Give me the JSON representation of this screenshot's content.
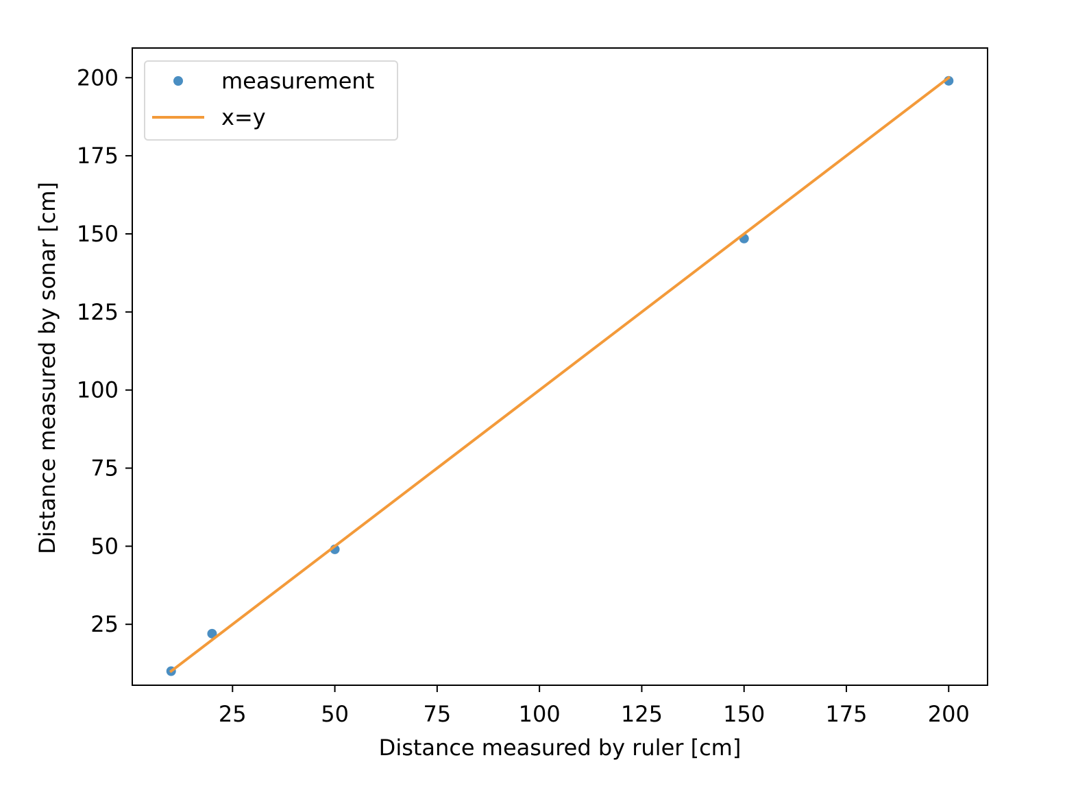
{
  "chart_data": {
    "type": "scatter",
    "xlabel": "Distance measured by ruler [cm]",
    "ylabel": "Distance measured by sonar [cm]",
    "xlim": [
      0.5,
      209.5
    ],
    "ylim": [
      5.5,
      209.5
    ],
    "xticks": [
      25,
      50,
      75,
      100,
      125,
      150,
      175,
      200
    ],
    "yticks": [
      25,
      50,
      75,
      100,
      125,
      150,
      175,
      200
    ],
    "grid": false,
    "legend_position": "upper-left",
    "series": [
      {
        "name": "measurement",
        "kind": "scatter",
        "color": "#4a8ec2",
        "x": [
          10,
          20,
          50,
          150,
          200
        ],
        "y": [
          10,
          22,
          49,
          148.5,
          199
        ]
      },
      {
        "name": "x=y",
        "kind": "line",
        "color": "#f39a3a",
        "x": [
          10,
          200
        ],
        "y": [
          10,
          200
        ]
      }
    ]
  }
}
